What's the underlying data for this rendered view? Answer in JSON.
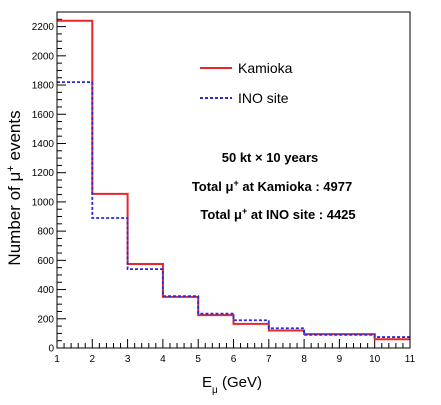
{
  "chart_data": {
    "type": "histogram",
    "xlabel": "E",
    "xlabel_sub": "μ",
    "xlabel_unit": "(GeV)",
    "ylabel_prefix": "Number of μ",
    "ylabel_sup": "+",
    "ylabel_suffix": "events",
    "xlim": [
      1,
      11
    ],
    "ylim": [
      0,
      2300
    ],
    "x_ticks": [
      1,
      2,
      3,
      4,
      5,
      6,
      7,
      8,
      9,
      10,
      11
    ],
    "y_ticks": [
      0,
      200,
      400,
      600,
      800,
      1000,
      1200,
      1400,
      1600,
      1800,
      2000,
      2200
    ],
    "bin_edges": [
      1,
      2,
      3,
      4,
      5,
      6,
      7,
      8,
      10,
      11
    ],
    "series": [
      {
        "name": "Kamioka",
        "color": "#e8262b",
        "style": "solid",
        "values": [
          2240,
          1055,
          575,
          350,
          225,
          165,
          120,
          95,
          60
        ]
      },
      {
        "name": "INO site",
        "color": "#2b2bd6",
        "style": "dashed",
        "values": [
          1820,
          890,
          540,
          355,
          235,
          190,
          135,
          90,
          75
        ]
      }
    ],
    "annotations": {
      "line1": "50 kt × 10 years",
      "line2_prefix": "Total  μ",
      "line2_sup": "+",
      "line2_suffix": " at Kamioka : 4977",
      "line3_prefix": "Total  μ",
      "line3_sup": "+",
      "line3_suffix": " at INO site : 4425"
    },
    "legend_position": "top-right",
    "grid": false
  }
}
